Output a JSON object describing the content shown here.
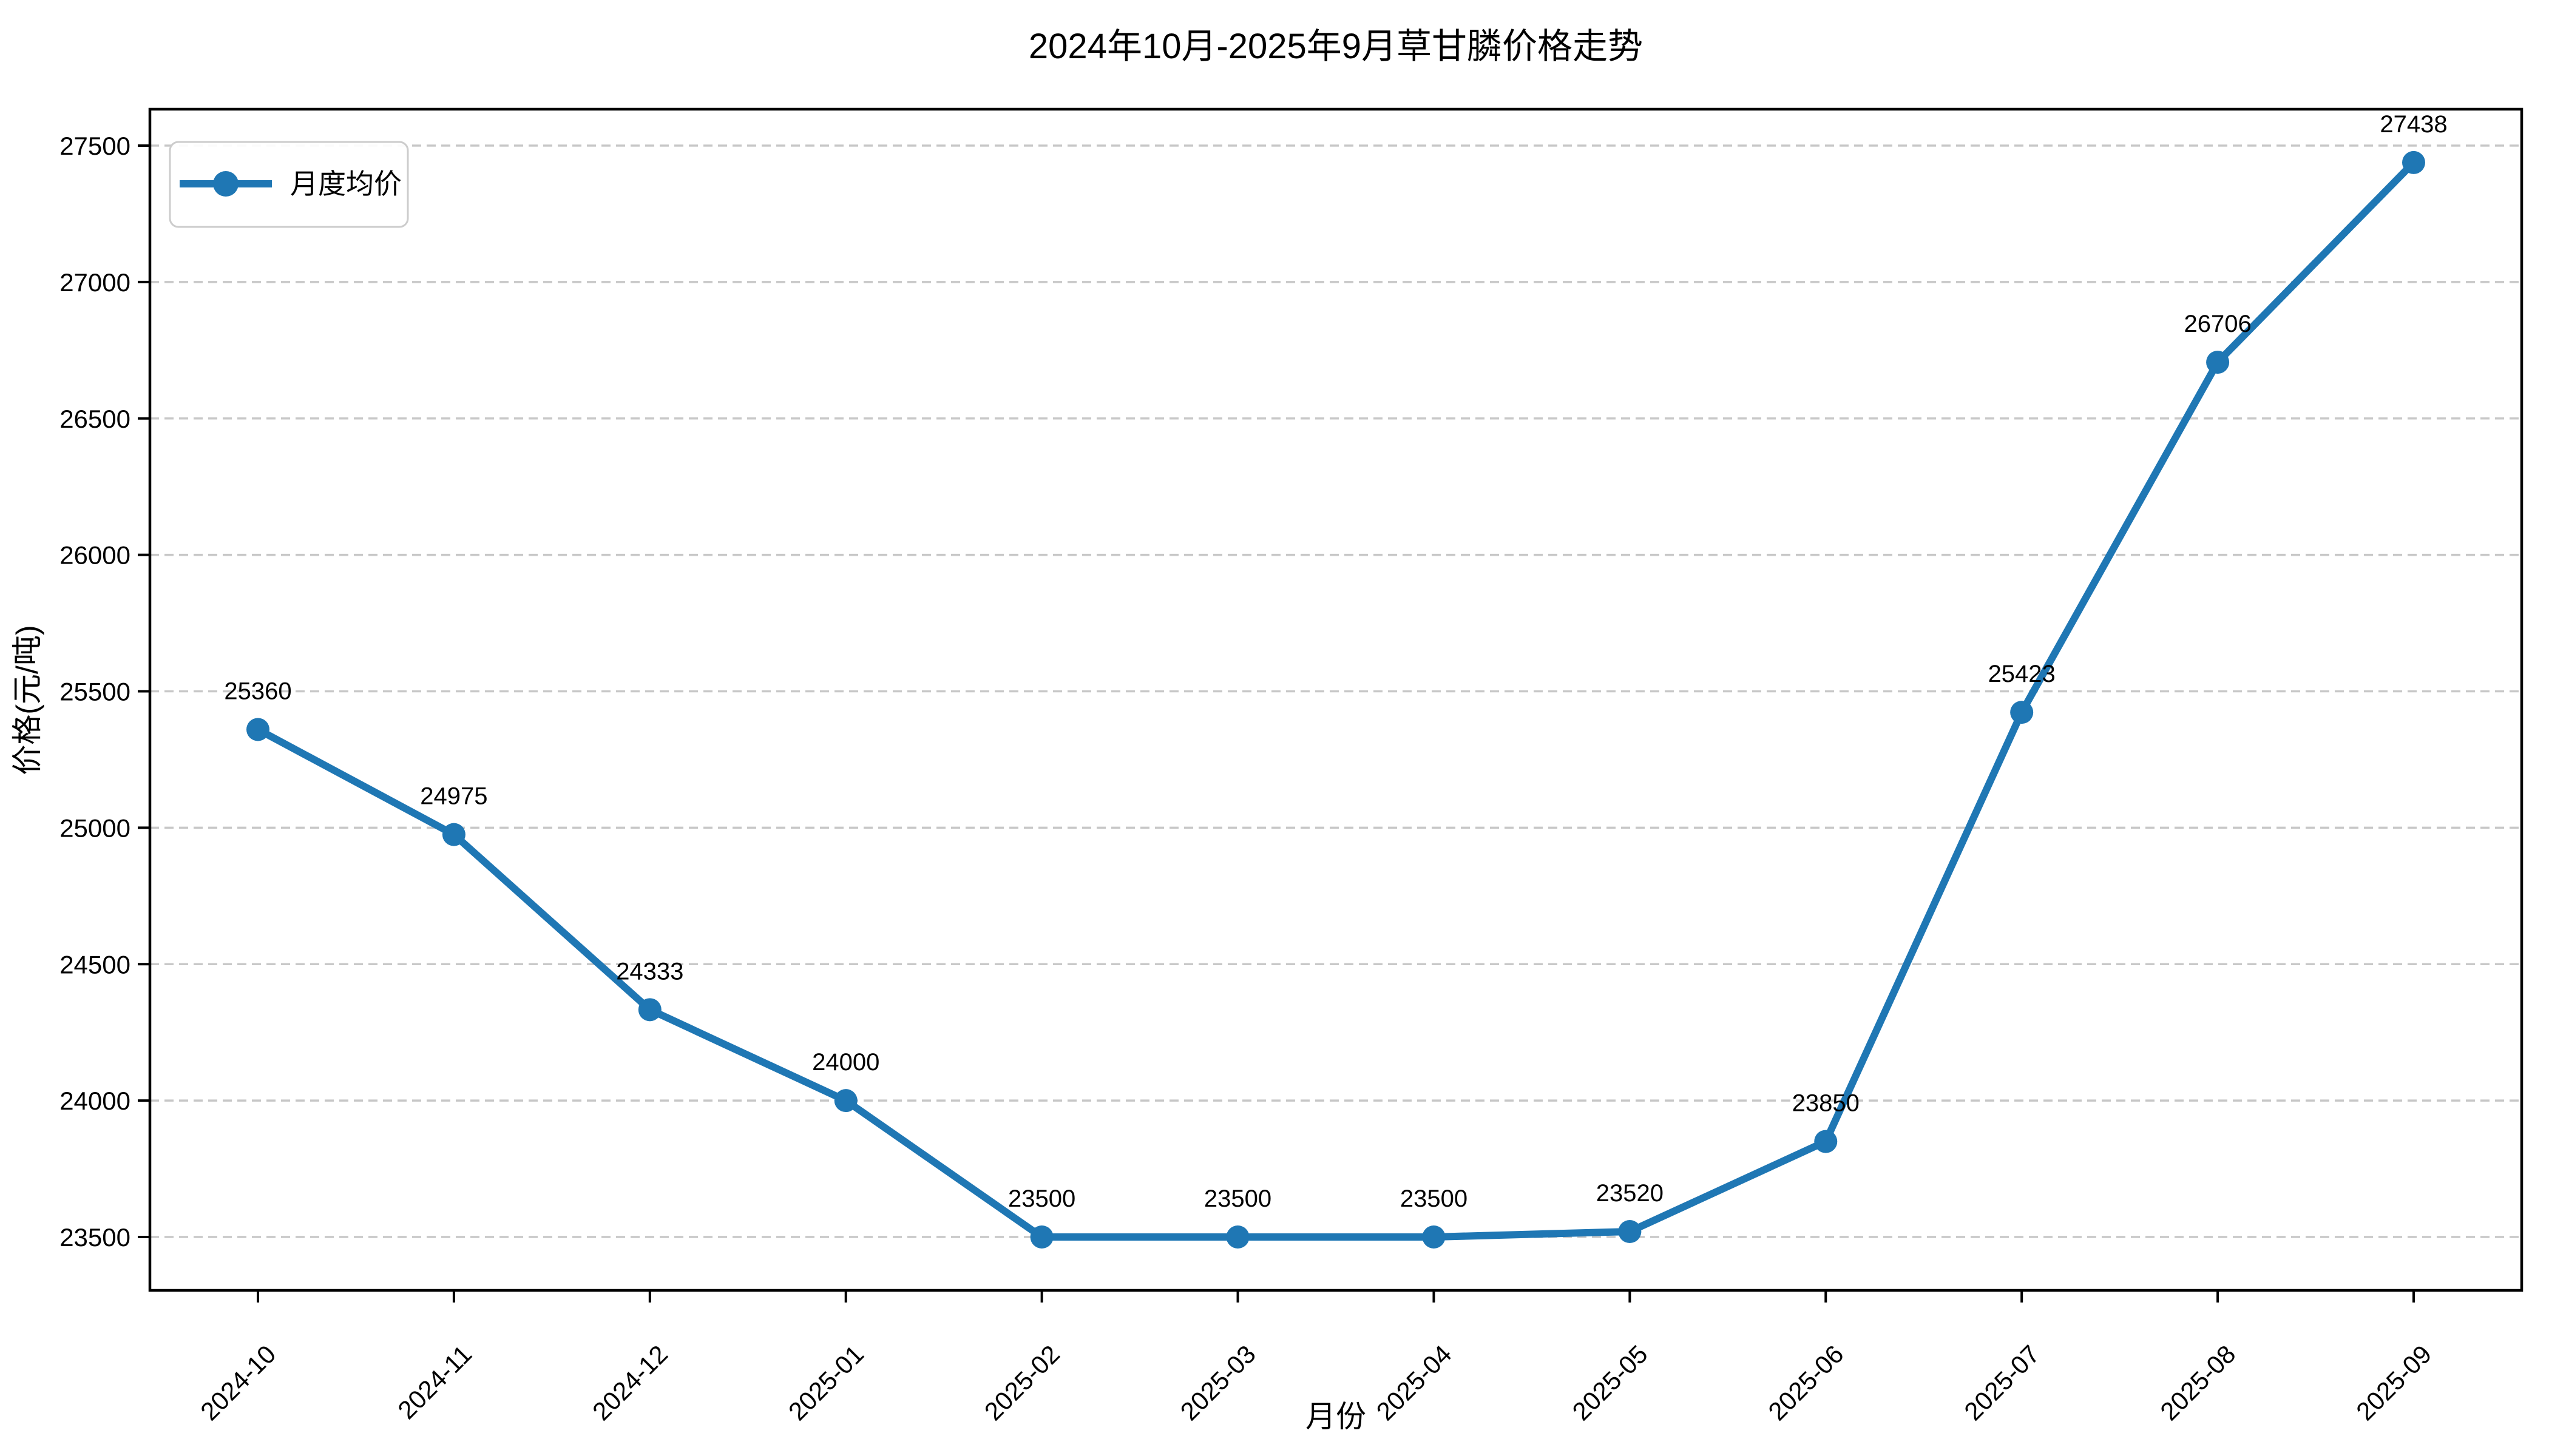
{
  "chart_data": {
    "type": "line",
    "title": "2024年10月-2025年9月草甘膦价格走势",
    "xlabel": "月份",
    "ylabel": "价格(元/吨)",
    "categories": [
      "2024-10",
      "2024-11",
      "2024-12",
      "2025-01",
      "2025-02",
      "2025-03",
      "2025-04",
      "2025-05",
      "2025-06",
      "2025-07",
      "2025-08",
      "2025-09"
    ],
    "series": [
      {
        "name": "月度均价",
        "color": "#1f77b4",
        "values": [
          25360,
          24975,
          24333,
          24000,
          23500,
          23500,
          23500,
          23520,
          23850,
          25423,
          26706,
          27438
        ]
      }
    ],
    "point_labels": [
      "25360",
      "24975",
      "24333",
      "24000",
      "23500",
      "23500",
      "23500",
      "23520",
      "23850",
      "25423",
      "26706",
      "27438"
    ],
    "yticks": [
      23500,
      24000,
      24500,
      25000,
      25500,
      26000,
      26500,
      27000,
      27500
    ],
    "ylim": [
      23303,
      27635
    ],
    "x_tick_rotation": 45,
    "grid": {
      "axis": "y",
      "style": "dashed",
      "color": "#c8c8c8"
    },
    "legend": {
      "position": "upper left",
      "entries": [
        "月度均价"
      ]
    },
    "colors": {
      "line": "#1f77b4",
      "marker": "#1f77b4",
      "grid": "#c8c8c8",
      "legend_border": "#cccccc",
      "text": "#000000",
      "background": "#ffffff"
    }
  }
}
